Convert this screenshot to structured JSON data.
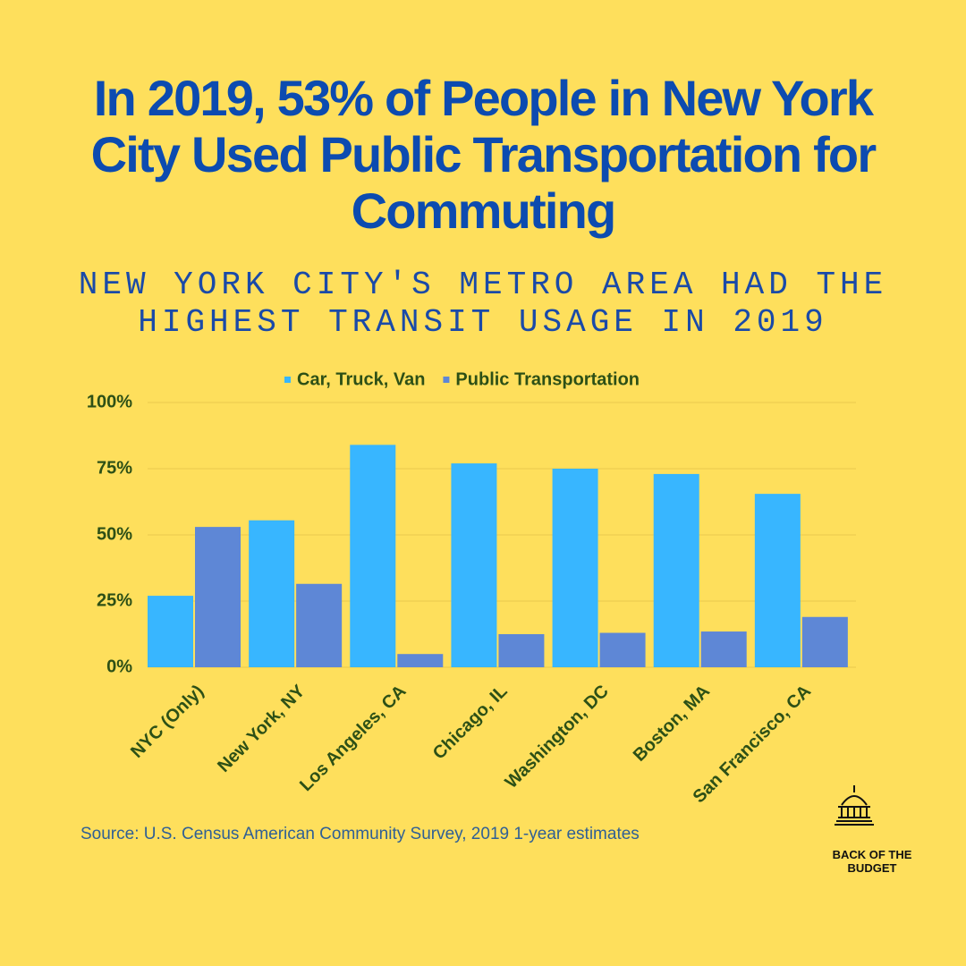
{
  "chart_data": {
    "type": "bar",
    "title": "In 2019, 53% of People in New York City Used Public Transportation for Commuting",
    "subtitle": "NEW YORK CITY'S METRO AREA HAD THE HIGHEST TRANSIT USAGE IN 2019",
    "categories": [
      "NYC (Only)",
      "New York, NY",
      "Los Angeles, CA",
      "Chicago, IL",
      "Washington, DC",
      "Boston, MA",
      "San Francisco, CA"
    ],
    "series": [
      {
        "name": "Car, Truck, Van",
        "color": "#38b6ff",
        "values": [
          27,
          55.5,
          84,
          77,
          75,
          73,
          65.5
        ]
      },
      {
        "name": "Public Transportation",
        "color": "#5e87d6",
        "values": [
          53,
          31.5,
          5,
          12.5,
          13,
          13.5,
          19
        ]
      }
    ],
    "ylim": [
      0,
      100
    ],
    "yticks": [
      {
        "value": 0,
        "label": "0%"
      },
      {
        "value": 25,
        "label": "25%"
      },
      {
        "value": 50,
        "label": "50%"
      },
      {
        "value": 75,
        "label": "75%"
      },
      {
        "value": 100,
        "label": "100%"
      }
    ],
    "grid": true,
    "legend": "top",
    "source": "Source: U.S. Census American Community Survey, 2019 1-year estimates",
    "logo_text": "BACK OF THE BUDGET"
  }
}
